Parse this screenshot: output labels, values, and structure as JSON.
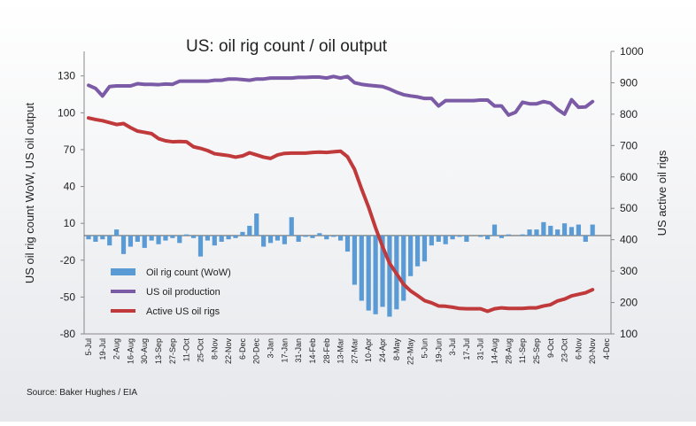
{
  "chart_data": {
    "type": "bar",
    "title": "US: oil rig count / oil output",
    "ylabel": "US oil rig count WoW, US oil output",
    "y2label": "US active oil rigs",
    "source": "Source: Baker Hughes / EIA",
    "categories": [
      "5-Jul",
      null,
      "19-Jul",
      null,
      "2-Aug",
      null,
      "16-Aug",
      null,
      "30-Aug",
      null,
      "13-Sep",
      null,
      "27-Sep",
      null,
      "11-Oct",
      null,
      "25-Oct",
      null,
      "8-Nov",
      null,
      "22-Nov",
      null,
      "6-Dec",
      null,
      "20-Dec",
      null,
      "3-Jan",
      null,
      "17-Jan",
      null,
      "31-Jan",
      null,
      "14-Feb",
      null,
      "28-Feb",
      null,
      "13-Mar",
      null,
      "27-Mar",
      null,
      "10-Apr",
      null,
      "24-Apr",
      null,
      "8-May",
      null,
      "22-May",
      null,
      "5-Jun",
      null,
      "19-Jun",
      null,
      "3-Jul",
      null,
      "17-Jul",
      null,
      "31-Jul",
      null,
      "14-Aug",
      null,
      "28-Aug",
      null,
      "11-Sep",
      null,
      "25-Sep",
      null,
      "9-Oct",
      null,
      "23-Oct",
      null,
      "6-Nov",
      null,
      "20-Nov",
      null,
      "4-Dec"
    ],
    "series": [
      {
        "name": "Oil rig count (WoW)",
        "type": "bar",
        "color": "#5b9bd5",
        "values": [
          -3,
          -5,
          -3,
          -8,
          5,
          -15,
          -9,
          -5,
          -10,
          -4,
          -7,
          -4,
          -2,
          -6,
          1,
          -2,
          -17,
          -4,
          -8,
          -5,
          -3,
          -2,
          3,
          8,
          18,
          -9,
          -6,
          -4,
          -7,
          15,
          -5,
          -1,
          -2,
          2,
          -3,
          -1,
          -4,
          -13,
          -40,
          -53,
          -61,
          -64,
          -58,
          -66,
          -60,
          -53,
          -33,
          -25,
          -21,
          -8,
          -5,
          -7,
          -3,
          -1,
          -5,
          0,
          -1,
          -3,
          9,
          -2,
          1,
          0,
          1,
          5,
          5,
          11,
          8,
          5,
          10,
          7,
          9,
          -5,
          9,
          null,
          null
        ]
      },
      {
        "name": "US oil production",
        "type": "line",
        "axis": "y2",
        "color": "#7b5ba6",
        "values": [
          892,
          882,
          858,
          888,
          890,
          890,
          890,
          897,
          895,
          895,
          894,
          896,
          895,
          905,
          905,
          905,
          905,
          905,
          908,
          908,
          912,
          912,
          910,
          908,
          912,
          912,
          915,
          915,
          915,
          915,
          917,
          917,
          918,
          918,
          915,
          920,
          915,
          920,
          900,
          895,
          892,
          890,
          888,
          880,
          870,
          862,
          858,
          855,
          850,
          850,
          826,
          843,
          843,
          843,
          843,
          843,
          845,
          845,
          826,
          826,
          797,
          806,
          838,
          833,
          833,
          840,
          835,
          815,
          800,
          846,
          822,
          823,
          840,
          null,
          null
        ]
      },
      {
        "name": "Active US oil rigs",
        "type": "line",
        "axis": "y2",
        "color": "#c0393b",
        "values": [
          788,
          783,
          779,
          773,
          767,
          770,
          757,
          746,
          742,
          738,
          722,
          715,
          712,
          713,
          712,
          696,
          691,
          684,
          674,
          671,
          668,
          663,
          667,
          677,
          670,
          663,
          659,
          670,
          675,
          676,
          676,
          676,
          678,
          679,
          678,
          680,
          682,
          664,
          624,
          562,
          504,
          438,
          378,
          325,
          292,
          258,
          237,
          222,
          206,
          199,
          189,
          188,
          185,
          181,
          180,
          180,
          180,
          172,
          180,
          183,
          181,
          181,
          181,
          183,
          183,
          189,
          193,
          205,
          211,
          221,
          226,
          231,
          241,
          null,
          null
        ]
      }
    ],
    "ylim": [
      -80,
      150
    ],
    "yticks": [
      -80,
      -50,
      -20,
      10,
      40,
      70,
      100,
      130
    ],
    "y2lim": [
      100,
      1000
    ],
    "y2ticks": [
      100,
      200,
      300,
      400,
      500,
      600,
      700,
      800,
      900,
      1000
    ],
    "legend_position": "lower left"
  }
}
